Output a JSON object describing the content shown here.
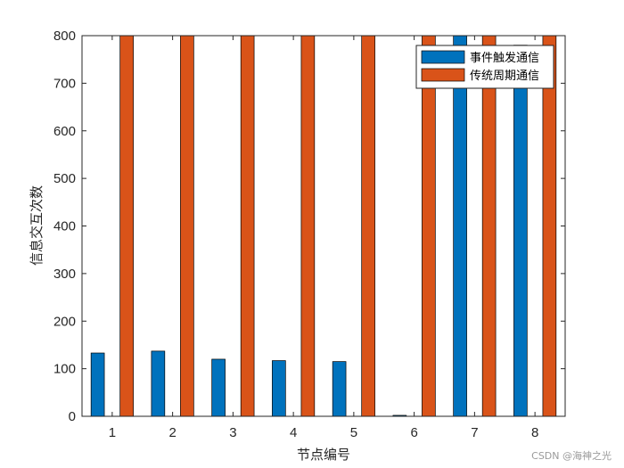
{
  "chart_data": {
    "type": "bar",
    "categories": [
      "1",
      "2",
      "3",
      "4",
      "5",
      "6",
      "7",
      "8"
    ],
    "series": [
      {
        "name": "事件触发通信",
        "values": [
          133,
          137,
          120,
          117,
          115,
          2,
          800,
          780
        ],
        "color": "#0072BD"
      },
      {
        "name": "传统周期通信",
        "values": [
          800,
          800,
          800,
          800,
          800,
          800,
          800,
          800
        ],
        "color": "#D95319"
      }
    ],
    "xlabel": "节点编号",
    "ylabel": "信息交互次数",
    "ylim": [
      0,
      800
    ],
    "yticks": [
      0,
      100,
      200,
      300,
      400,
      500,
      600,
      700,
      800
    ],
    "grid": false,
    "legend_position": "top-right"
  },
  "watermark": "CSDN @海神之光"
}
